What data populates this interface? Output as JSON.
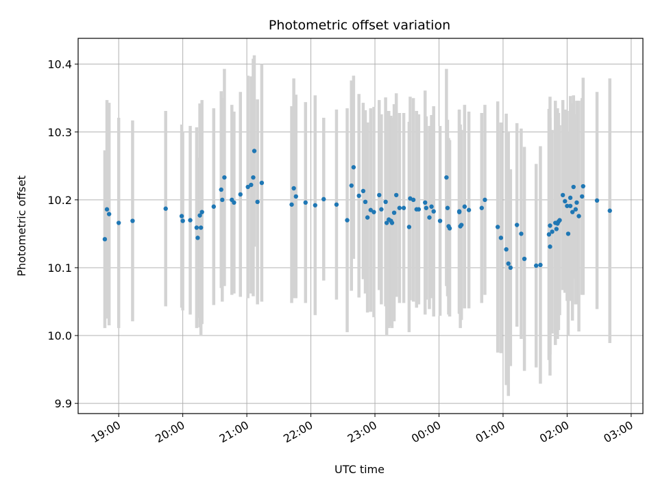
{
  "chart_data": {
    "type": "scatter",
    "title": "Photometric offset variation",
    "xlabel": "UTC time",
    "ylabel": "Photometric offset",
    "x_ticks": [
      "19:00",
      "20:00",
      "21:00",
      "22:00",
      "23:00",
      "00:00",
      "01:00",
      "02:00",
      "03:00"
    ],
    "y_ticks": [
      "9.9",
      "10.0",
      "10.1",
      "10.2",
      "10.3",
      "10.4"
    ],
    "xlim": [
      "18:22",
      "03:11"
    ],
    "ylim": [
      9.885,
      10.438
    ],
    "grid": true,
    "marker_color": "#1f77b4",
    "errorbar_color": "#d3d3d3",
    "series": [
      {
        "points": [
          [
            "18:47",
            10.142,
            0.131
          ],
          [
            "18:49",
            10.186,
            0.161
          ],
          [
            "18:51",
            10.179,
            0.164
          ],
          [
            "19:00",
            10.166,
            0.155
          ],
          [
            "19:13",
            10.169,
            0.148
          ],
          [
            "19:44",
            10.187,
            0.144
          ],
          [
            "19:59",
            10.176,
            0.135
          ],
          [
            "20:00",
            10.169,
            0.132
          ],
          [
            "20:07",
            10.17,
            0.139
          ],
          [
            "20:13",
            10.159,
            0.148
          ],
          [
            "20:14",
            10.144,
            0.118
          ],
          [
            "20:16",
            10.177,
            0.165
          ],
          [
            "20:17",
            10.159,
            0.158
          ],
          [
            "20:18",
            10.182,
            0.165
          ],
          [
            "20:29",
            10.19,
            0.145
          ],
          [
            "20:36",
            10.215,
            0.145
          ],
          [
            "20:37",
            10.2,
            0.15
          ],
          [
            "20:39",
            10.233,
            0.16
          ],
          [
            "20:46",
            10.2,
            0.14
          ],
          [
            "20:48",
            10.196,
            0.134
          ],
          [
            "20:54",
            10.208,
            0.151
          ],
          [
            "21:01",
            10.219,
            0.164
          ],
          [
            "21:04",
            10.222,
            0.16
          ],
          [
            "21:06",
            10.233,
            0.175
          ],
          [
            "21:07",
            10.272,
            0.141
          ],
          [
            "21:10",
            10.197,
            0.151
          ],
          [
            "21:14",
            10.225,
            0.175
          ],
          [
            "21:42",
            10.193,
            0.145
          ],
          [
            "21:44",
            10.217,
            0.162
          ],
          [
            "21:46",
            10.205,
            0.15
          ],
          [
            "21:55",
            10.196,
            0.148
          ],
          [
            "22:04",
            10.192,
            0.162
          ],
          [
            "22:12",
            10.201,
            0.12
          ],
          [
            "22:24",
            10.193,
            0.14
          ],
          [
            "22:34",
            10.17,
            0.165
          ],
          [
            "22:38",
            10.221,
            0.155
          ],
          [
            "22:40",
            10.248,
            0.135
          ],
          [
            "22:45",
            10.206,
            0.15
          ],
          [
            "22:49",
            10.213,
            0.13
          ],
          [
            "22:51",
            10.197,
            0.135
          ],
          [
            "22:53",
            10.174,
            0.14
          ],
          [
            "22:56",
            10.185,
            0.15
          ],
          [
            "22:59",
            10.182,
            0.155
          ],
          [
            "23:04",
            10.207,
            0.14
          ],
          [
            "23:06",
            10.186,
            0.14
          ],
          [
            "23:10",
            10.197,
            0.154
          ],
          [
            "23:11",
            10.166,
            0.165
          ],
          [
            "23:13",
            10.171,
            0.16
          ],
          [
            "23:15",
            10.169,
            0.155
          ],
          [
            "23:16",
            10.166,
            0.155
          ],
          [
            "23:18",
            10.181,
            0.16
          ],
          [
            "23:20",
            10.207,
            0.15
          ],
          [
            "23:23",
            10.188,
            0.14
          ],
          [
            "23:27",
            10.188,
            0.14
          ],
          [
            "23:32",
            10.16,
            0.155
          ],
          [
            "23:33",
            10.202,
            0.15
          ],
          [
            "23:36",
            10.2,
            0.15
          ],
          [
            "23:39",
            10.186,
            0.145
          ],
          [
            "23:41",
            10.186,
            0.14
          ],
          [
            "23:47",
            10.196,
            0.165
          ],
          [
            "23:48",
            10.188,
            0.135
          ],
          [
            "23:51",
            10.174,
            0.135
          ],
          [
            "23:53",
            10.19,
            0.135
          ],
          [
            "23:55",
            10.183,
            0.155
          ],
          [
            "00:01",
            10.169,
            0.14
          ],
          [
            "00:07",
            10.233,
            0.16
          ],
          [
            "00:08",
            10.188,
            0.13
          ],
          [
            "00:09",
            10.161,
            0.13
          ],
          [
            "00:10",
            10.158,
            0.13
          ],
          [
            "00:19",
            10.183,
            0.15
          ],
          [
            "00:19",
            10.182,
            0.15
          ],
          [
            "00:20",
            10.161,
            0.15
          ],
          [
            "00:21",
            10.163,
            0.14
          ],
          [
            "00:24",
            10.19,
            0.15
          ],
          [
            "00:28",
            10.185,
            0.145
          ],
          [
            "00:40",
            10.188,
            0.14
          ],
          [
            "00:43",
            10.2,
            0.14
          ],
          [
            "00:55",
            10.16,
            0.185
          ],
          [
            "00:58",
            10.144,
            0.17
          ],
          [
            "01:03",
            10.127,
            0.2
          ],
          [
            "01:05",
            10.106,
            0.195
          ],
          [
            "01:07",
            10.1,
            0.145
          ],
          [
            "01:13",
            10.163,
            0.15
          ],
          [
            "01:17",
            10.15,
            0.155
          ],
          [
            "01:20",
            10.113,
            0.165
          ],
          [
            "01:31",
            10.103,
            0.15
          ],
          [
            "01:35",
            10.104,
            0.175
          ],
          [
            "01:43",
            10.149,
            0.185
          ],
          [
            "01:44",
            10.162,
            0.19
          ],
          [
            "01:44",
            10.131,
            0.19
          ],
          [
            "01:46",
            10.153,
            0.15
          ],
          [
            "01:49",
            10.166,
            0.18
          ],
          [
            "01:50",
            10.157,
            0.16
          ],
          [
            "01:51",
            10.165,
            0.17
          ],
          [
            "01:52",
            10.168,
            0.16
          ],
          [
            "01:53",
            10.17,
            0.14
          ],
          [
            "01:56",
            10.207,
            0.14
          ],
          [
            "01:58",
            10.198,
            0.135
          ],
          [
            "02:00",
            10.191,
            0.14
          ],
          [
            "02:01",
            10.15,
            0.15
          ],
          [
            "02:03",
            10.191,
            0.14
          ],
          [
            "02:03",
            10.203,
            0.15
          ],
          [
            "02:05",
            10.182,
            0.16
          ],
          [
            "02:06",
            10.219,
            0.135
          ],
          [
            "02:08",
            10.186,
            0.14
          ],
          [
            "02:09",
            10.196,
            0.15
          ],
          [
            "02:11",
            10.176,
            0.17
          ],
          [
            "02:14",
            10.205,
            0.145
          ],
          [
            "02:15",
            10.22,
            0.16
          ],
          [
            "02:28",
            10.199,
            0.16
          ],
          [
            "02:40",
            10.184,
            0.195
          ]
        ]
      }
    ]
  }
}
